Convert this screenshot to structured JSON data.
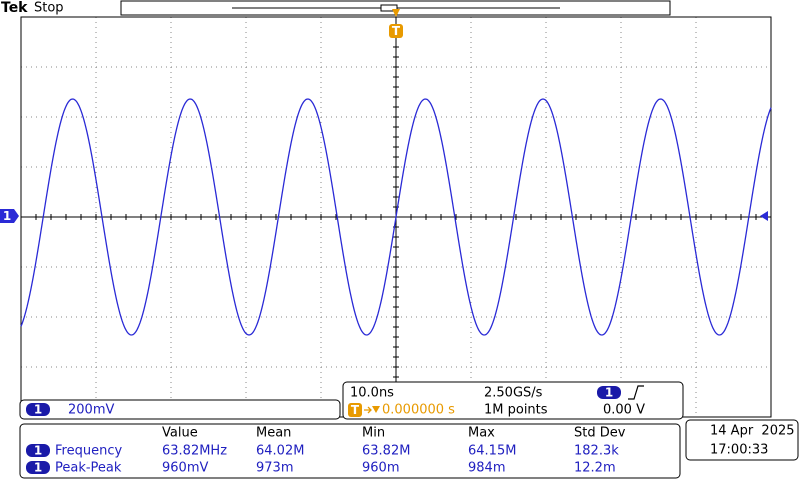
{
  "header": {
    "brand": "Tek",
    "status": "Stop"
  },
  "channel": {
    "number": "1",
    "scale": "200mV"
  },
  "acquisition": {
    "time_scale": "10.0ns",
    "sample_rate": "2.50GS/s",
    "trigger_channel": "1",
    "trigger_level": "0.00 V",
    "trigger_marker": "T",
    "trigger_position": "0.000000 s",
    "record_length": "1M points"
  },
  "measurements": {
    "columns": [
      "Value",
      "Mean",
      "Min",
      "Max",
      "Std Dev"
    ],
    "rows": [
      {
        "channel": "1",
        "name": "Frequency",
        "values": [
          "63.82MHz",
          "64.02M",
          "63.82M",
          "64.15M",
          "182.3k"
        ]
      },
      {
        "channel": "1",
        "name": "Peak-Peak",
        "values": [
          "960mV",
          "973m",
          "960m",
          "984m",
          "12.2m"
        ]
      }
    ]
  },
  "datetime": {
    "date": "14 Apr  2025",
    "time": "17:00:33"
  }
}
